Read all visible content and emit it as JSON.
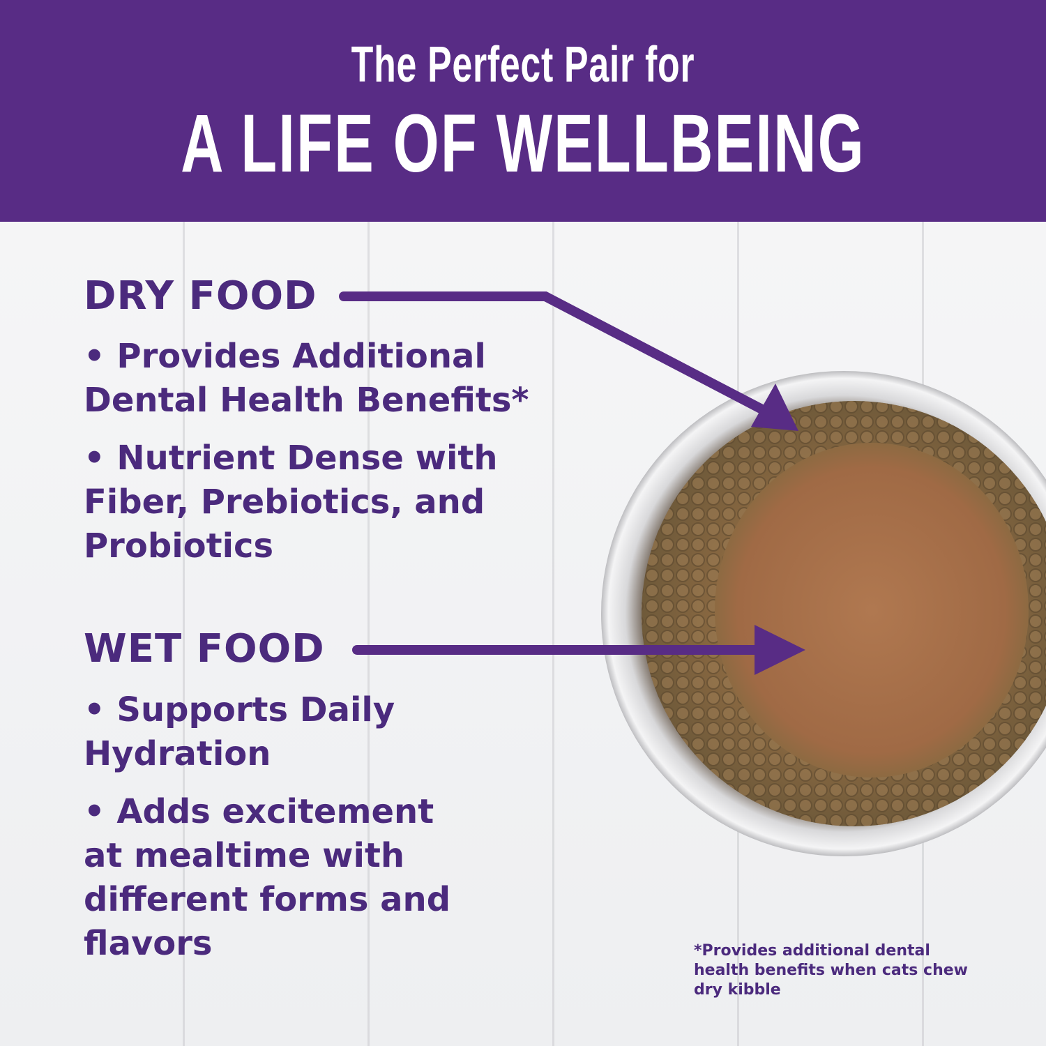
{
  "banner": {
    "subtitle": "The Perfect Pair for",
    "title": "A LIFE OF WELLBEING",
    "color": "#582c85"
  },
  "dry": {
    "heading": "DRY FOOD",
    "bullets": [
      "• Provides Additional Dental Health Benefits*",
      "• Nutrient Dense with Fiber, Prebiotics, and Probiotics"
    ]
  },
  "wet": {
    "heading": "WET FOOD",
    "bullets": [
      "• Supports Daily Hydration",
      "• Adds excitement at mealtime with different forms and flavors"
    ]
  },
  "footnote": "*Provides additional dental health benefits when cats chew dry kibble",
  "text_color": "#4b2a7d"
}
